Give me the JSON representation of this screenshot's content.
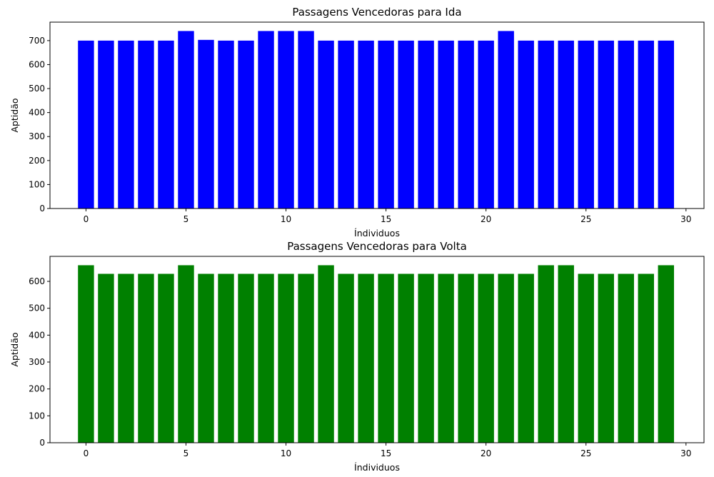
{
  "chart_data": [
    {
      "type": "bar",
      "title": "Passagens Vencedoras para Ida",
      "xlabel": "Índividuos",
      "ylabel": "Aptidão",
      "color": "#0000ff",
      "x": [
        0,
        1,
        2,
        3,
        4,
        5,
        6,
        7,
        8,
        9,
        10,
        11,
        12,
        13,
        14,
        15,
        16,
        17,
        18,
        19,
        20,
        21,
        22,
        23,
        24,
        25,
        26,
        27,
        28,
        29
      ],
      "values": [
        700,
        700,
        700,
        700,
        700,
        740,
        703,
        700,
        700,
        740,
        740,
        740,
        700,
        700,
        700,
        700,
        700,
        700,
        700,
        700,
        700,
        740,
        700,
        700,
        700,
        700,
        700,
        700,
        700,
        700
      ],
      "xlim": [
        -1.8,
        30.9
      ],
      "ylim": [
        0,
        777
      ],
      "xticks": [
        0,
        5,
        10,
        15,
        20,
        25,
        30
      ],
      "yticks": [
        0,
        100,
        200,
        300,
        400,
        500,
        600,
        700
      ],
      "grid": false
    },
    {
      "type": "bar",
      "title": "Passagens Vencedoras para Volta",
      "xlabel": "Índividuos",
      "ylabel": "Aptidão",
      "color": "#008000",
      "x": [
        0,
        1,
        2,
        3,
        4,
        5,
        6,
        7,
        8,
        9,
        10,
        11,
        12,
        13,
        14,
        15,
        16,
        17,
        18,
        19,
        20,
        21,
        22,
        23,
        24,
        25,
        26,
        27,
        28,
        29
      ],
      "values": [
        660,
        628,
        628,
        628,
        628,
        660,
        628,
        628,
        628,
        628,
        628,
        628,
        660,
        628,
        628,
        628,
        628,
        628,
        628,
        628,
        628,
        628,
        628,
        660,
        660,
        628,
        628,
        628,
        628,
        660
      ],
      "xlim": [
        -1.8,
        30.9
      ],
      "ylim": [
        0,
        693
      ],
      "xticks": [
        0,
        5,
        10,
        15,
        20,
        25,
        30
      ],
      "yticks": [
        0,
        100,
        200,
        300,
        400,
        500,
        600
      ],
      "grid": false
    }
  ]
}
